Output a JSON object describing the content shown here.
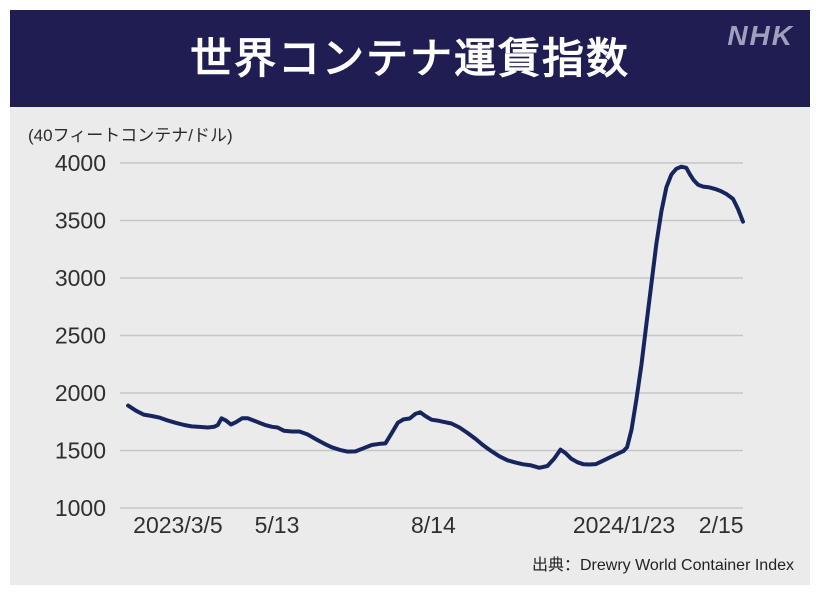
{
  "header": {
    "title": "世界コンテナ運賃指数",
    "logo": "NHK"
  },
  "chart": {
    "unit_label": "(40フィートコンテナ/ドル)",
    "source": "出典：Drewry World Container Index"
  },
  "colors": {
    "header_bg": "#201d52",
    "panel_bg": "#ebebeb",
    "line": "#16255e",
    "grid": "#c6c6c6",
    "logo": "#a0a0bd",
    "title_text": "#ffffff",
    "axis_text": "#2f2f2f"
  },
  "chart_data": {
    "type": "line",
    "title": "世界コンテナ運賃指数",
    "ylabel": "(40フィートコンテナ/ドル)",
    "ylim": [
      1000,
      4000
    ],
    "yticks": [
      1000,
      1500,
      2000,
      2500,
      3000,
      3500,
      4000
    ],
    "grid": "horizontal",
    "legend": "none",
    "xticks": [
      {
        "label": "2023/3/5",
        "pos": 9.3
      },
      {
        "label": "5/13",
        "pos": 25.2
      },
      {
        "label": "8/14",
        "pos": 50.3
      },
      {
        "label": "2024/1/23",
        "pos": 80.9
      },
      {
        "label": "2/15",
        "pos": 96.5
      }
    ],
    "series": [
      {
        "name": "Drewry World Container Index",
        "points": [
          [
            1.3,
            1890
          ],
          [
            2.6,
            1845
          ],
          [
            3.8,
            1812
          ],
          [
            5.1,
            1800
          ],
          [
            6.4,
            1785
          ],
          [
            7.7,
            1760
          ],
          [
            9,
            1740
          ],
          [
            10.3,
            1722
          ],
          [
            11.5,
            1710
          ],
          [
            12.8,
            1705
          ],
          [
            14.1,
            1700
          ],
          [
            15.1,
            1706
          ],
          [
            15.7,
            1722
          ],
          [
            16.3,
            1780
          ],
          [
            17,
            1762
          ],
          [
            17.8,
            1726
          ],
          [
            18.6,
            1746
          ],
          [
            19.6,
            1780
          ],
          [
            20.5,
            1780
          ],
          [
            21.5,
            1760
          ],
          [
            22.4,
            1740
          ],
          [
            23.4,
            1720
          ],
          [
            24.4,
            1706
          ],
          [
            25.3,
            1700
          ],
          [
            26.3,
            1672
          ],
          [
            27.6,
            1665
          ],
          [
            28.8,
            1665
          ],
          [
            30.1,
            1640
          ],
          [
            31.4,
            1600
          ],
          [
            32.7,
            1562
          ],
          [
            34,
            1528
          ],
          [
            35.3,
            1505
          ],
          [
            36.5,
            1490
          ],
          [
            37.8,
            1492
          ],
          [
            39.1,
            1520
          ],
          [
            40.4,
            1548
          ],
          [
            41.7,
            1558
          ],
          [
            42.6,
            1562
          ],
          [
            43.6,
            1650
          ],
          [
            44.6,
            1742
          ],
          [
            45.5,
            1770
          ],
          [
            46.5,
            1778
          ],
          [
            47.4,
            1818
          ],
          [
            48.2,
            1832
          ],
          [
            49,
            1800
          ],
          [
            50,
            1768
          ],
          [
            51,
            1760
          ],
          [
            51.9,
            1750
          ],
          [
            53.2,
            1735
          ],
          [
            54.5,
            1700
          ],
          [
            55.8,
            1652
          ],
          [
            57.1,
            1600
          ],
          [
            58.3,
            1545
          ],
          [
            59.6,
            1495
          ],
          [
            60.9,
            1450
          ],
          [
            62.2,
            1415
          ],
          [
            63.5,
            1395
          ],
          [
            64.7,
            1380
          ],
          [
            66,
            1370
          ],
          [
            67.3,
            1350
          ],
          [
            68.6,
            1365
          ],
          [
            69.7,
            1430
          ],
          [
            70.7,
            1508
          ],
          [
            71.5,
            1478
          ],
          [
            72.4,
            1430
          ],
          [
            73.4,
            1398
          ],
          [
            74.4,
            1380
          ],
          [
            75.3,
            1378
          ],
          [
            76.4,
            1382
          ],
          [
            77.6,
            1412
          ],
          [
            78.7,
            1442
          ],
          [
            79.8,
            1470
          ],
          [
            80.8,
            1495
          ],
          [
            81.4,
            1530
          ],
          [
            82.1,
            1680
          ],
          [
            82.9,
            1950
          ],
          [
            83.7,
            2250
          ],
          [
            84.5,
            2600
          ],
          [
            85.3,
            2950
          ],
          [
            86.1,
            3300
          ],
          [
            86.9,
            3580
          ],
          [
            87.7,
            3790
          ],
          [
            88.5,
            3900
          ],
          [
            89.3,
            3950
          ],
          [
            90.1,
            3968
          ],
          [
            90.9,
            3958
          ],
          [
            91.5,
            3900
          ],
          [
            92.1,
            3850
          ],
          [
            92.8,
            3810
          ],
          [
            93.6,
            3795
          ],
          [
            94.6,
            3788
          ],
          [
            95.5,
            3775
          ],
          [
            96.5,
            3755
          ],
          [
            97.4,
            3728
          ],
          [
            98.4,
            3688
          ],
          [
            99.2,
            3600
          ],
          [
            100,
            3490
          ]
        ]
      }
    ],
    "source": "出典：Drewry World Container Index"
  }
}
